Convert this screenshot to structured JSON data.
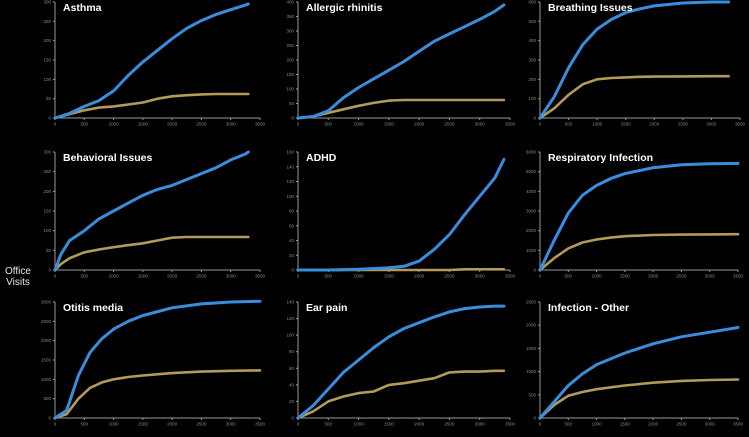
{
  "ylabel": "Office\nVisits",
  "colors": {
    "background": "#000000",
    "blue_series": "#3a8ddc",
    "gold_series": "#b49a5a",
    "axis": "#9a9a9a",
    "text": "#ffffff"
  },
  "chart_data": [
    {
      "type": "line",
      "title": "Asthma",
      "ylim": [
        0,
        300
      ],
      "yticks": [
        "0",
        "50",
        "100",
        "150",
        "200",
        "250",
        "300"
      ],
      "xticks": [
        "0",
        "500",
        "1000",
        "1500",
        "2000",
        "2500",
        "3000",
        "3500"
      ],
      "x": [
        0,
        250,
        500,
        750,
        1000,
        1250,
        1500,
        1750,
        2000,
        2250,
        2500,
        2750,
        3000,
        3250,
        3300
      ],
      "series": [
        {
          "values": [
            0,
            12,
            30,
            45,
            70,
            110,
            145,
            175,
            205,
            232,
            252,
            268,
            280,
            292,
            295
          ]
        },
        {
          "values": [
            0,
            10,
            20,
            27,
            30,
            35,
            40,
            50,
            56,
            59,
            61,
            62,
            62,
            62,
            62
          ]
        }
      ]
    },
    {
      "type": "line",
      "title": "Allergic rhinitis",
      "ylim": [
        0,
        400
      ],
      "yticks": [
        "0",
        "50",
        "100",
        "150",
        "200",
        "250",
        "300",
        "350",
        "400"
      ],
      "xticks": [
        "0",
        "500",
        "1000",
        "1500",
        "2000",
        "2500",
        "3000",
        "3500"
      ],
      "x": [
        0,
        250,
        500,
        750,
        1000,
        1250,
        1500,
        1750,
        2000,
        2250,
        2500,
        2750,
        3000,
        3250,
        3400
      ],
      "series": [
        {
          "values": [
            0,
            5,
            25,
            70,
            105,
            135,
            165,
            195,
            230,
            265,
            290,
            315,
            340,
            368,
            390
          ]
        },
        {
          "values": [
            0,
            5,
            18,
            30,
            42,
            52,
            60,
            62,
            62,
            62,
            62,
            62,
            62,
            62,
            62
          ]
        }
      ]
    },
    {
      "type": "line",
      "title": "Breathing Issues",
      "ylim": [
        0,
        600
      ],
      "yticks": [
        "0",
        "100",
        "200",
        "300",
        "400",
        "500",
        "600"
      ],
      "xticks": [
        "0",
        "500",
        "1000",
        "1500",
        "2000",
        "2500",
        "3000",
        "3500"
      ],
      "x": [
        0,
        250,
        500,
        750,
        1000,
        1250,
        1500,
        1750,
        2000,
        2500,
        3000,
        3300
      ],
      "series": [
        {
          "values": [
            0,
            110,
            260,
            380,
            460,
            510,
            545,
            565,
            580,
            595,
            600,
            600
          ]
        },
        {
          "values": [
            0,
            50,
            120,
            175,
            200,
            207,
            210,
            213,
            214,
            215,
            216,
            216
          ]
        }
      ]
    },
    {
      "type": "line",
      "title": "Behavioral Issues",
      "ylim": [
        0,
        300
      ],
      "yticks": [
        "0",
        "50",
        "100",
        "150",
        "200",
        "250",
        "300"
      ],
      "xticks": [
        "0",
        "500",
        "1000",
        "1500",
        "2000",
        "2500",
        "3000",
        "3500"
      ],
      "x": [
        0,
        100,
        250,
        500,
        750,
        1000,
        1250,
        1500,
        1750,
        2000,
        2250,
        2500,
        2750,
        3000,
        3250,
        3300
      ],
      "series": [
        {
          "values": [
            0,
            40,
            75,
            100,
            130,
            150,
            170,
            190,
            205,
            215,
            230,
            245,
            260,
            280,
            295,
            300
          ]
        },
        {
          "values": [
            0,
            15,
            30,
            45,
            52,
            58,
            63,
            68,
            75,
            82,
            84,
            84,
            84,
            84,
            84,
            84
          ]
        }
      ]
    },
    {
      "type": "line",
      "title": "ADHD",
      "ylim": [
        0,
        160
      ],
      "yticks": [
        "0",
        "20",
        "40",
        "60",
        "80",
        "100",
        "120",
        "140",
        "160"
      ],
      "xticks": [
        "0",
        "500",
        "1000",
        "1500",
        "2000",
        "2500",
        "3000",
        "3500"
      ],
      "x": [
        0,
        500,
        1000,
        1500,
        1750,
        2000,
        2250,
        2500,
        2750,
        3000,
        3250,
        3400
      ],
      "series": [
        {
          "values": [
            0,
            0,
            1,
            3,
            5,
            12,
            28,
            48,
            75,
            100,
            125,
            150
          ]
        },
        {
          "values": [
            0,
            0,
            0,
            0,
            0,
            0,
            0,
            0,
            1,
            1,
            1,
            1
          ]
        }
      ]
    },
    {
      "type": "line",
      "title": "Respiratory Infection",
      "ylim": [
        0,
        6000
      ],
      "yticks": [
        "0",
        "1000",
        "2000",
        "3000",
        "4000",
        "5000",
        "6000"
      ],
      "xticks": [
        "0",
        "500",
        "1000",
        "1500",
        "2000",
        "2500",
        "3000",
        "3500"
      ],
      "x": [
        0,
        250,
        500,
        750,
        1000,
        1250,
        1500,
        2000,
        2500,
        3000,
        3500
      ],
      "series": [
        {
          "values": [
            0,
            1500,
            2900,
            3800,
            4300,
            4650,
            4900,
            5200,
            5350,
            5400,
            5420
          ]
        },
        {
          "values": [
            0,
            600,
            1100,
            1400,
            1550,
            1650,
            1720,
            1780,
            1800,
            1810,
            1820
          ]
        }
      ]
    },
    {
      "type": "line",
      "title": "Otitis media",
      "ylim": [
        0,
        3000
      ],
      "yticks": [
        "0",
        "500",
        "1000",
        "1500",
        "2000",
        "2500",
        "3000"
      ],
      "xticks": [
        "0",
        "500",
        "1000",
        "1500",
        "2000",
        "2500",
        "3000",
        "3500"
      ],
      "x": [
        0,
        200,
        400,
        600,
        800,
        1000,
        1250,
        1500,
        2000,
        2500,
        3000,
        3500
      ],
      "series": [
        {
          "values": [
            0,
            200,
            1100,
            1700,
            2050,
            2300,
            2500,
            2650,
            2850,
            2950,
            3000,
            3020
          ]
        },
        {
          "values": [
            0,
            100,
            500,
            780,
            920,
            1000,
            1060,
            1100,
            1160,
            1200,
            1220,
            1230
          ]
        }
      ]
    },
    {
      "type": "line",
      "title": "Ear pain",
      "ylim": [
        0,
        140
      ],
      "yticks": [
        "0",
        "20",
        "40",
        "60",
        "80",
        "100",
        "120",
        "140"
      ],
      "xticks": [
        "0",
        "500",
        "1000",
        "1500",
        "2000",
        "2500",
        "3000",
        "3500"
      ],
      "x": [
        0,
        250,
        500,
        750,
        1000,
        1250,
        1500,
        1750,
        2000,
        2250,
        2500,
        2750,
        3000,
        3250,
        3400
      ],
      "series": [
        {
          "values": [
            0,
            15,
            35,
            55,
            70,
            85,
            98,
            108,
            115,
            122,
            128,
            132,
            134,
            135,
            135
          ]
        },
        {
          "values": [
            0,
            8,
            20,
            26,
            30,
            32,
            40,
            42,
            45,
            48,
            55,
            56,
            56,
            57,
            57
          ]
        }
      ]
    },
    {
      "type": "line",
      "title": "Infection - Other",
      "ylim": [
        0,
        2500
      ],
      "yticks": [
        "0",
        "500",
        "1000",
        "1500",
        "2000",
        "2500"
      ],
      "xticks": [
        "0",
        "500",
        "1000",
        "1500",
        "2000",
        "2500",
        "3000",
        "3500"
      ],
      "x": [
        0,
        250,
        500,
        750,
        1000,
        1500,
        2000,
        2500,
        3000,
        3500
      ],
      "series": [
        {
          "values": [
            0,
            350,
            700,
            950,
            1150,
            1400,
            1600,
            1750,
            1850,
            1950
          ]
        },
        {
          "values": [
            0,
            280,
            480,
            560,
            620,
            700,
            760,
            800,
            820,
            830
          ]
        }
      ]
    }
  ]
}
